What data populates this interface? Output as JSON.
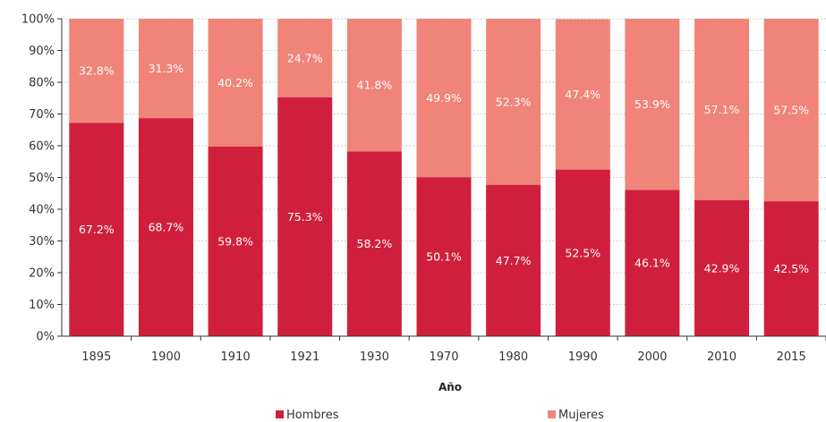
{
  "chart_data": {
    "type": "bar",
    "stacked": true,
    "categories": [
      "1895",
      "1900",
      "1910",
      "1921",
      "1930",
      "1970",
      "1980",
      "1990",
      "2000",
      "2010",
      "2015"
    ],
    "series": [
      {
        "name": "Hombres",
        "color": "#d01f3c",
        "values": [
          67.2,
          68.7,
          59.8,
          75.3,
          58.2,
          50.1,
          47.7,
          52.5,
          46.1,
          42.9,
          42.5
        ],
        "labels": [
          "67.2%",
          "68.7%",
          "59.8%",
          "75.3%",
          "58.2%",
          "50.1%",
          "47.7%",
          "52.5%",
          "46.1%",
          "42.9%",
          "42.5%"
        ]
      },
      {
        "name": "Mujeres",
        "color": "#f08478",
        "values": [
          32.8,
          31.3,
          40.2,
          24.7,
          41.8,
          49.9,
          52.3,
          47.4,
          53.9,
          57.1,
          57.5
        ],
        "labels": [
          "32.8%",
          "31.3%",
          "40.2%",
          "24.7%",
          "41.8%",
          "49.9%",
          "52.3%",
          "47.4%",
          "53.9%",
          "57.1%",
          "57.5%"
        ]
      }
    ],
    "xlabel": "Año",
    "ylabel": "",
    "ylim": [
      0,
      100
    ],
    "yticks": [
      "0%",
      "10%",
      "20%",
      "30%",
      "40%",
      "50%",
      "60%",
      "70%",
      "80%",
      "90%",
      "100%"
    ],
    "grid": true,
    "legend_position": "bottom"
  }
}
